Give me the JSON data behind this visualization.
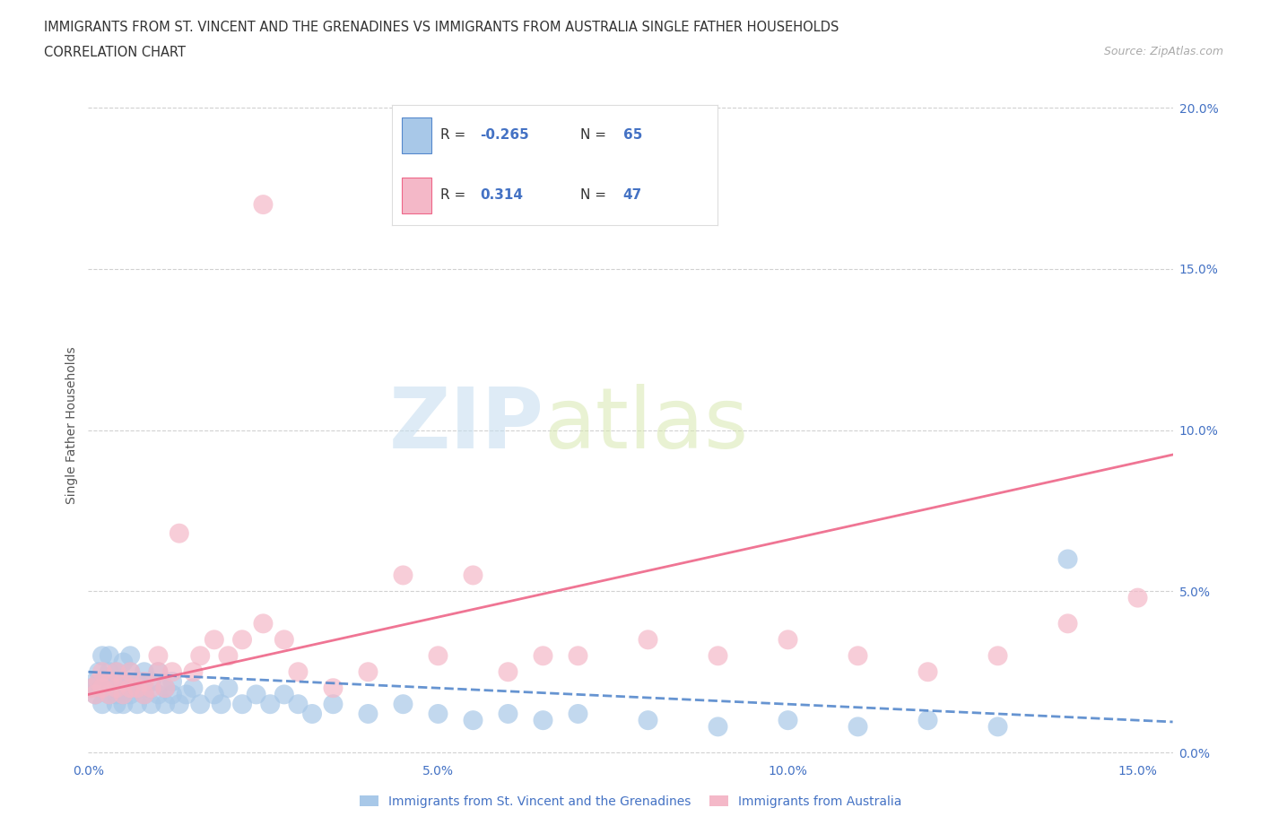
{
  "title_line1": "IMMIGRANTS FROM ST. VINCENT AND THE GRENADINES VS IMMIGRANTS FROM AUSTRALIA SINGLE FATHER HOUSEHOLDS",
  "title_line2": "CORRELATION CHART",
  "source_text": "Source: ZipAtlas.com",
  "ylabel": "Single Father Households",
  "xlabel_blue": "Immigrants from St. Vincent and the Grenadines",
  "xlabel_pink": "Immigrants from Australia",
  "R_blue": -0.265,
  "N_blue": 65,
  "R_pink": 0.314,
  "N_pink": 47,
  "color_blue": "#a8c8e8",
  "color_pink": "#f4b8c8",
  "color_line_blue": "#5588cc",
  "color_line_pink": "#ee6688",
  "xlim": [
    0.0,
    0.155
  ],
  "ylim": [
    -0.002,
    0.205
  ],
  "xticks": [
    0.0,
    0.05,
    0.1,
    0.15
  ],
  "yticks": [
    0.0,
    0.05,
    0.1,
    0.15,
    0.2
  ],
  "xticklabels": [
    "0.0%",
    "5.0%",
    "10.0%",
    "15.0%"
  ],
  "yticklabels": [
    "0.0%",
    "5.0%",
    "10.0%",
    "15.0%",
    "20.0%"
  ],
  "watermark_zip": "ZIP",
  "watermark_atlas": "atlas",
  "blue_x": [
    0.0005,
    0.001,
    0.001,
    0.0015,
    0.002,
    0.002,
    0.002,
    0.003,
    0.003,
    0.003,
    0.003,
    0.004,
    0.004,
    0.004,
    0.004,
    0.005,
    0.005,
    0.005,
    0.005,
    0.005,
    0.006,
    0.006,
    0.006,
    0.007,
    0.007,
    0.007,
    0.008,
    0.008,
    0.008,
    0.009,
    0.009,
    0.01,
    0.01,
    0.011,
    0.011,
    0.012,
    0.012,
    0.013,
    0.014,
    0.015,
    0.016,
    0.018,
    0.019,
    0.02,
    0.022,
    0.024,
    0.026,
    0.028,
    0.03,
    0.032,
    0.035,
    0.04,
    0.045,
    0.05,
    0.055,
    0.06,
    0.065,
    0.07,
    0.08,
    0.09,
    0.1,
    0.11,
    0.12,
    0.13,
    0.14
  ],
  "blue_y": [
    0.02,
    0.022,
    0.018,
    0.025,
    0.02,
    0.03,
    0.015,
    0.025,
    0.018,
    0.022,
    0.03,
    0.02,
    0.015,
    0.025,
    0.018,
    0.022,
    0.028,
    0.015,
    0.018,
    0.02,
    0.025,
    0.018,
    0.03,
    0.02,
    0.015,
    0.022,
    0.018,
    0.025,
    0.02,
    0.015,
    0.022,
    0.018,
    0.025,
    0.02,
    0.015,
    0.018,
    0.022,
    0.015,
    0.018,
    0.02,
    0.015,
    0.018,
    0.015,
    0.02,
    0.015,
    0.018,
    0.015,
    0.018,
    0.015,
    0.012,
    0.015,
    0.012,
    0.015,
    0.012,
    0.01,
    0.012,
    0.01,
    0.012,
    0.01,
    0.008,
    0.01,
    0.008,
    0.01,
    0.008,
    0.06
  ],
  "pink_x": [
    0.0005,
    0.001,
    0.0015,
    0.002,
    0.002,
    0.003,
    0.003,
    0.004,
    0.004,
    0.005,
    0.005,
    0.006,
    0.006,
    0.007,
    0.008,
    0.008,
    0.009,
    0.01,
    0.01,
    0.011,
    0.012,
    0.013,
    0.015,
    0.016,
    0.018,
    0.02,
    0.022,
    0.025,
    0.028,
    0.03,
    0.035,
    0.04,
    0.045,
    0.05,
    0.055,
    0.06,
    0.065,
    0.07,
    0.08,
    0.09,
    0.1,
    0.11,
    0.12,
    0.13,
    0.14,
    0.15,
    0.025
  ],
  "pink_y": [
    0.02,
    0.018,
    0.022,
    0.02,
    0.025,
    0.018,
    0.022,
    0.02,
    0.025,
    0.018,
    0.022,
    0.02,
    0.025,
    0.02,
    0.018,
    0.022,
    0.02,
    0.025,
    0.03,
    0.02,
    0.025,
    0.068,
    0.025,
    0.03,
    0.035,
    0.03,
    0.035,
    0.04,
    0.035,
    0.025,
    0.02,
    0.025,
    0.055,
    0.03,
    0.055,
    0.025,
    0.03,
    0.03,
    0.035,
    0.03,
    0.035,
    0.03,
    0.025,
    0.03,
    0.04,
    0.048,
    0.17
  ]
}
